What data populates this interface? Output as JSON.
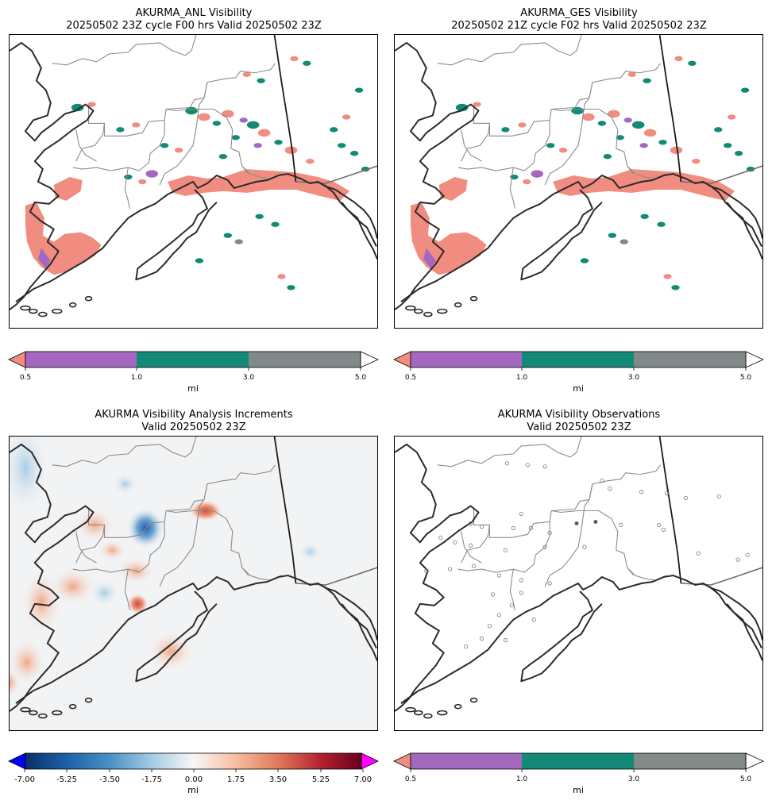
{
  "panels": [
    {
      "title_line1": "AKURMA_ANL Visibility",
      "title_line2": "20250502 23Z cycle F00 hrs Valid 20250502 23Z"
    },
    {
      "title_line1": "AKURMA_GES Visibility",
      "title_line2": "20250502 21Z cycle F02 hrs Valid 20250502 23Z"
    },
    {
      "title_line1": "AKURMA Visibility Analysis Increments",
      "title_line2": "Valid 20250502 23Z"
    },
    {
      "title_line1": "AKURMA Visibility Observations",
      "title_line2": "Valid 20250502 23Z"
    }
  ],
  "visibility_colorbar": {
    "ticks": [
      "0.5",
      "1.0",
      "3.0",
      "5.0"
    ],
    "unit": "mi",
    "colors": {
      "under": "#f08c80",
      "b1": "#a468c0",
      "b2": "#128a76",
      "b3": "#808a88",
      "over": "#ffffff"
    }
  },
  "increment_colorbar": {
    "ticks": [
      "-7.00",
      "-5.25",
      "-3.50",
      "-1.75",
      "0.00",
      "1.75",
      "3.50",
      "5.25",
      "7.00"
    ],
    "unit": "mi",
    "colors": {
      "under": "#0000ff",
      "over": "#ff00ff",
      "low": "#08306b",
      "mid": "#f7f7f7",
      "high": "#67001f"
    }
  }
}
